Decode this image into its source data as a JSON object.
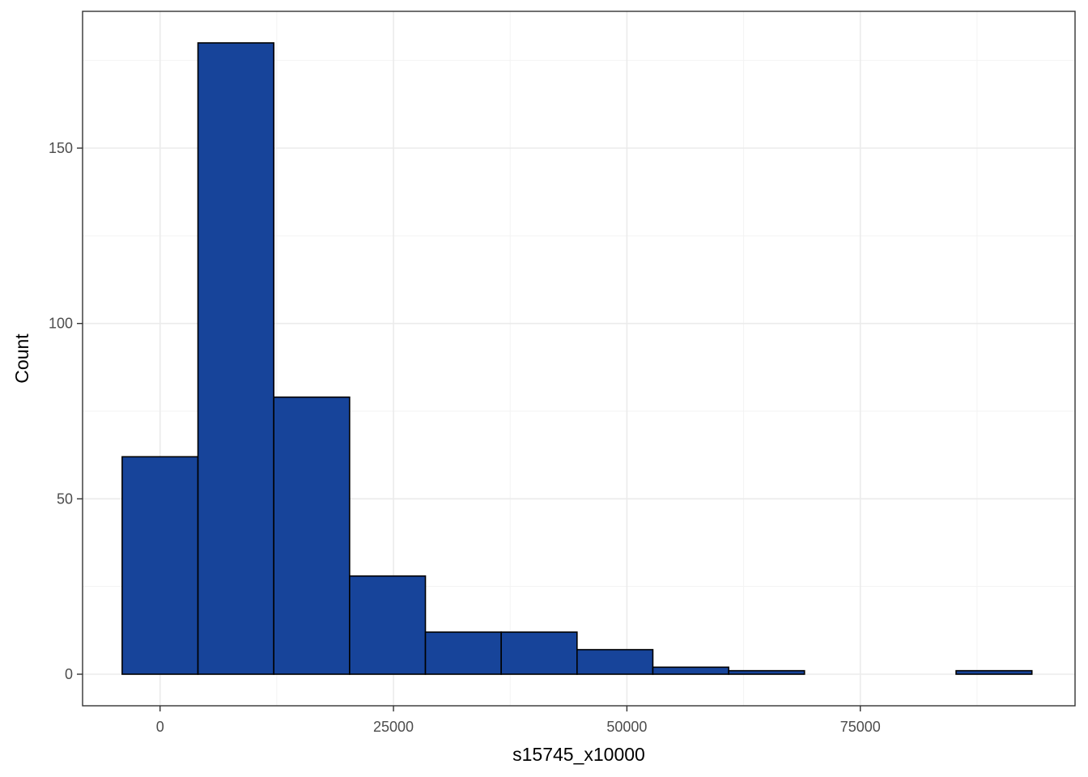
{
  "chart_data": {
    "type": "bar",
    "subtype": "histogram",
    "xlabel": "s15745_x10000",
    "ylabel": "Count",
    "bin_width": 8120,
    "bin_edges": [
      -4060,
      4060,
      12180,
      20300,
      28420,
      36540,
      44660,
      52780,
      60900,
      69020,
      77140,
      85260,
      93380
    ],
    "values": [
      62,
      180,
      79,
      28,
      12,
      12,
      7,
      2,
      1,
      0,
      0,
      1
    ],
    "xlim": [
      -8300,
      98000
    ],
    "ylim": [
      -9,
      189
    ],
    "x_ticks": [
      0,
      25000,
      50000,
      75000
    ],
    "y_ticks": [
      0,
      50,
      100,
      150
    ],
    "grid": true,
    "legend": "none",
    "colors": {
      "bar_fill": "#17449A",
      "bar_stroke": "#000000",
      "grid_major": "#ebebeb",
      "grid_minor": "#f3f3f3",
      "panel_border": "#333333"
    }
  }
}
